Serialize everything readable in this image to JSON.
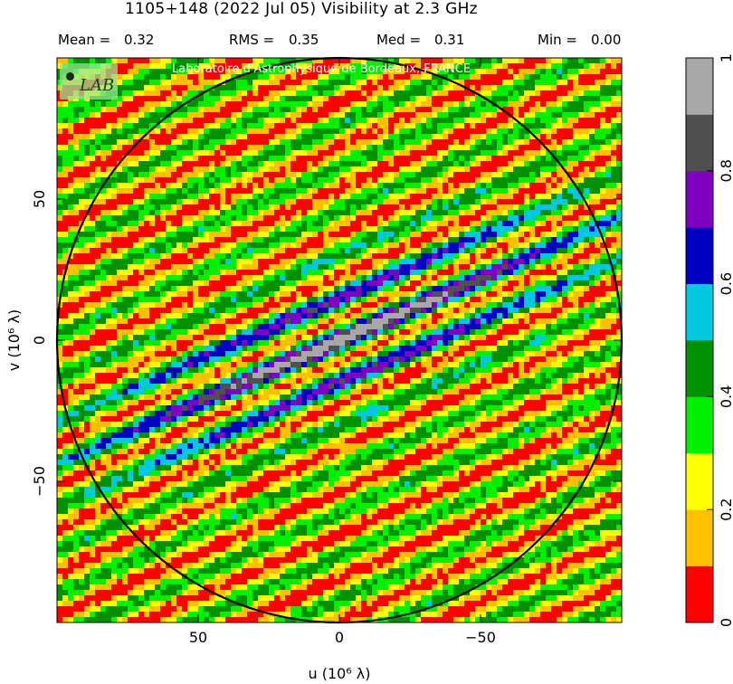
{
  "header": {
    "title": "1105+148   (2022 Jul 05)   Visibility at  2.3 GHz",
    "stats": [
      {
        "label": "Mean =",
        "value": "0.32"
      },
      {
        "label": "RMS =",
        "value": "0.35"
      },
      {
        "label": "Med =",
        "value": "0.31"
      },
      {
        "label": "Min =",
        "value": "0.00"
      }
    ]
  },
  "watermark": "Laboratoire d'Astrophysique de Bordeaux, FRANCE",
  "logo_text": "LAB",
  "chart_data": {
    "type": "heatmap",
    "title": "1105+148   (2022 Jul 05)   Visibility at  2.3 GHz",
    "xlabel": "u  (10⁶ λ)",
    "ylabel": "v  (10⁶ λ)",
    "xlim": [
      100,
      -100
    ],
    "ylim": [
      -100,
      100
    ],
    "x_ticks": [
      50,
      0,
      -50
    ],
    "x_tick_labels": [
      "50",
      "0",
      "−50"
    ],
    "y_ticks": [
      50,
      0,
      -50
    ],
    "y_tick_labels": [
      "50",
      "0",
      "−50"
    ],
    "circle_radius": 100,
    "fringe_slope": 0.44,
    "fringe_period_normal": 14,
    "colorbar": {
      "range": [
        0,
        1
      ],
      "ticks": [
        0,
        0.2,
        0.4,
        0.6,
        0.8,
        1
      ],
      "tick_labels": [
        "0",
        "0.2",
        "0.4",
        "0.6",
        "0.8",
        "1"
      ],
      "levels": [
        0,
        0.1,
        0.2,
        0.3,
        0.4,
        0.5,
        0.6,
        0.7,
        0.8,
        0.9,
        1.0
      ],
      "colors": [
        "#ff0000",
        "#ffc000",
        "#ffff00",
        "#00f000",
        "#009000",
        "#00c8e0",
        "#0000c0",
        "#8000c0",
        "#505050",
        "#a8a8a8"
      ]
    },
    "grid": false
  }
}
